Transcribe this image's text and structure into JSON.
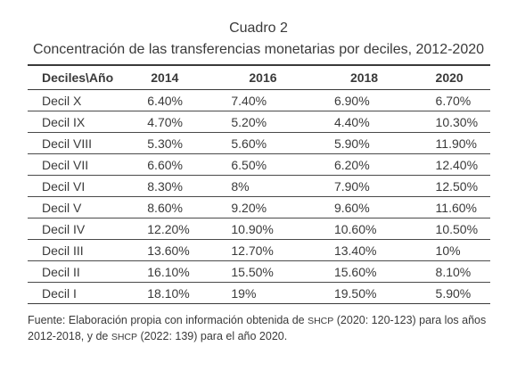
{
  "header": {
    "cuadro": "Cuadro 2",
    "title": "Concentración de las transferencias monetarias por deciles, 2012-2020"
  },
  "table": {
    "columns": [
      "Deciles\\Año",
      "2014",
      "2016",
      "2018",
      "2020"
    ],
    "rows": [
      [
        "Decil X",
        "6.40%",
        "7.40%",
        "6.90%",
        "6.70%"
      ],
      [
        "Decil IX",
        "4.70%",
        "5.20%",
        "4.40%",
        "10.30%"
      ],
      [
        "Decil VIII",
        "5.30%",
        "5.60%",
        "5.90%",
        "11.90%"
      ],
      [
        "Decil VII",
        "6.60%",
        "6.50%",
        "6.20%",
        "12.40%"
      ],
      [
        "Decil VI",
        "8.30%",
        "8%",
        "7.90%",
        "12.50%"
      ],
      [
        "Decil V",
        "8.60%",
        "9.20%",
        "9.60%",
        "11.60%"
      ],
      [
        "Decil IV",
        "12.20%",
        "10.90%",
        "10.60%",
        "10.50%"
      ],
      [
        "Decil III",
        "13.60%",
        "12.70%",
        "13.40%",
        "10%"
      ],
      [
        "Decil II",
        "16.10%",
        "15.50%",
        "15.60%",
        "8.10%"
      ],
      [
        "Decil I",
        "18.10%",
        "19%",
        "19.50%",
        "5.90%"
      ]
    ]
  },
  "footnote": {
    "part1": "Fuente: Elaboración propia con información obtenida de ",
    "org1": "SHCP",
    "part2": " (2020: 120-123) para los años 2012-2018, y de ",
    "org2": "SHCP",
    "part3": " (2022: 139) para el año 2020."
  }
}
